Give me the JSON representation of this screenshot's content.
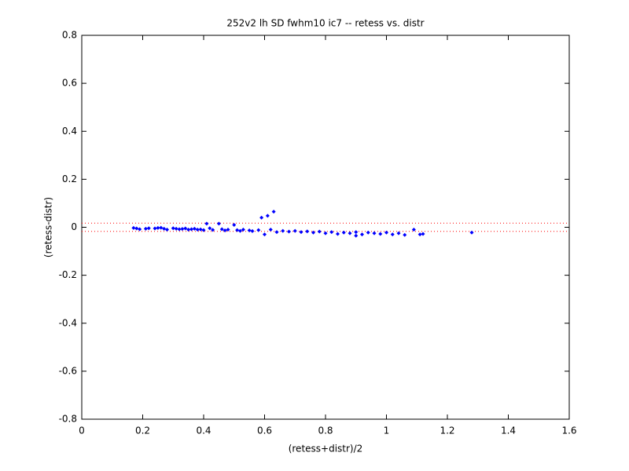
{
  "chart_data": {
    "type": "scatter",
    "title": "252v2 lh SD fwhm10 ic7 -- retess vs. distr",
    "x_label": "(retess+distr)/2",
    "y_label": "(retess-distr)",
    "xlim": [
      0,
      1.6
    ],
    "ylim": [
      -0.8,
      0.8
    ],
    "xticks": [
      0,
      0.2,
      0.4,
      0.6,
      0.8,
      1,
      1.2,
      1.4,
      1.6
    ],
    "yticks": [
      -0.8,
      -0.6,
      -0.4,
      -0.2,
      0,
      0.2,
      0.4,
      0.6,
      0.8
    ],
    "grid": false,
    "x": [
      0.17,
      0.18,
      0.19,
      0.21,
      0.22,
      0.24,
      0.25,
      0.26,
      0.27,
      0.28,
      0.3,
      0.31,
      0.32,
      0.33,
      0.34,
      0.35,
      0.36,
      0.37,
      0.38,
      0.39,
      0.4,
      0.41,
      0.42,
      0.43,
      0.45,
      0.46,
      0.47,
      0.48,
      0.5,
      0.51,
      0.52,
      0.53,
      0.55,
      0.56,
      0.58,
      0.59,
      0.6,
      0.61,
      0.62,
      0.63,
      0.64,
      0.66,
      0.68,
      0.7,
      0.72,
      0.74,
      0.76,
      0.78,
      0.8,
      0.82,
      0.84,
      0.86,
      0.88,
      0.9,
      0.9,
      0.92,
      0.94,
      0.96,
      0.98,
      1.0,
      1.02,
      1.04,
      1.06,
      1.09,
      1.11,
      1.12,
      1.28
    ],
    "series": [
      {
        "color": "#0000ff",
        "values": [
          -0.003,
          -0.005,
          -0.008,
          -0.006,
          -0.004,
          -0.005,
          -0.003,
          -0.002,
          -0.006,
          -0.01,
          -0.004,
          -0.006,
          -0.008,
          -0.007,
          -0.005,
          -0.01,
          -0.008,
          -0.006,
          -0.01,
          -0.009,
          -0.012,
          0.015,
          -0.004,
          -0.011,
          0.015,
          -0.008,
          -0.013,
          -0.01,
          0.01,
          -0.012,
          -0.015,
          -0.01,
          -0.013,
          -0.016,
          -0.012,
          0.04,
          -0.03,
          0.048,
          -0.01,
          0.065,
          -0.02,
          -0.015,
          -0.018,
          -0.015,
          -0.02,
          -0.017,
          -0.022,
          -0.018,
          -0.025,
          -0.02,
          -0.028,
          -0.022,
          -0.025,
          -0.02,
          -0.035,
          -0.03,
          -0.022,
          -0.025,
          -0.028,
          -0.022,
          -0.03,
          -0.025,
          -0.032,
          -0.01,
          -0.03,
          -0.028,
          -0.022
        ]
      }
    ],
    "reference_lines": {
      "values": [
        0.017,
        -0.017
      ],
      "color": "#ff0000",
      "style": "dotted"
    }
  }
}
